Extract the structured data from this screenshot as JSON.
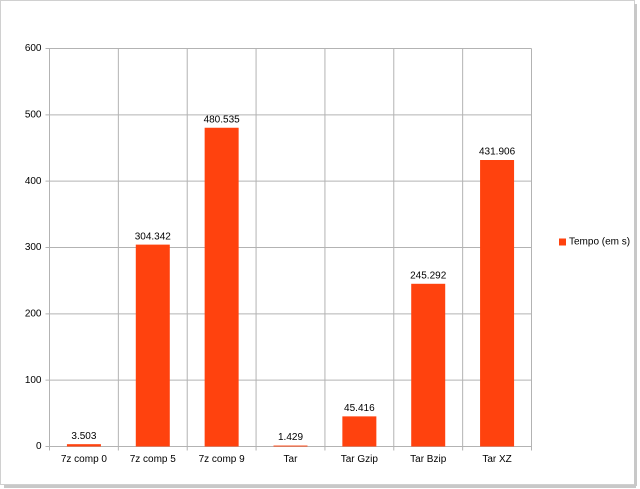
{
  "chart_data": {
    "type": "bar",
    "categories": [
      "7z comp 0",
      "7z comp 5",
      "7z comp 9",
      "Tar",
      "Tar Gzip",
      "Tar Bzip",
      "Tar XZ"
    ],
    "series": [
      {
        "name": "Tempo (em s)",
        "color": "#ff420e",
        "values": [
          3.503,
          304.342,
          480.535,
          1.429,
          45.416,
          245.292,
          431.906
        ]
      }
    ],
    "ylim": [
      0,
      600
    ],
    "yticks": [
      0,
      100,
      200,
      300,
      400,
      500,
      600
    ],
    "grid": true,
    "legend": "right"
  }
}
